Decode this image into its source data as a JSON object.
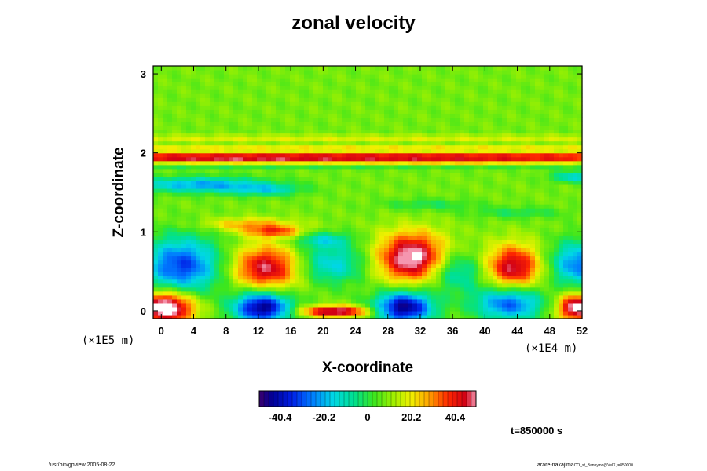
{
  "chart_data": {
    "type": "heatmap",
    "title": "zonal velocity",
    "xlabel": "X-coordinate",
    "ylabel": "Z-coordinate",
    "x_unit_label": "(×1E4 m)",
    "y_unit_label": "(×1E5 m)",
    "xlim": [
      -1,
      52
    ],
    "ylim": [
      -0.1,
      3.1
    ],
    "x_ticks": [
      "0",
      "4",
      "8",
      "12",
      "16",
      "20",
      "24",
      "28",
      "32",
      "36",
      "40",
      "44",
      "48",
      "52"
    ],
    "y_ticks": [
      "0",
      "1",
      "2",
      "3"
    ],
    "x_tick_values": [
      0,
      4,
      8,
      12,
      16,
      20,
      24,
      28,
      32,
      36,
      40,
      44,
      48,
      52
    ],
    "y_tick_values": [
      0,
      1,
      2,
      3
    ],
    "colorbar": {
      "range": [
        -50,
        50
      ],
      "tick_labels": [
        "-40.4",
        "-20.2",
        "0",
        "20.2",
        "40.4"
      ],
      "tick_values": [
        -40.4,
        -20.2,
        0,
        20.2,
        40.4
      ]
    },
    "background_value": 8,
    "features": [
      {
        "x": 20.5,
        "z": 1.95,
        "sx": 60,
        "sz": 0.04,
        "v": 40
      },
      {
        "x": 8,
        "z": 1.9,
        "sx": 9,
        "sz": 0.03,
        "v": 8
      },
      {
        "x": 36,
        "z": 1.88,
        "sx": 12,
        "sz": 0.03,
        "v": 10
      },
      {
        "x": 20,
        "z": 1.83,
        "sx": 60,
        "sz": 0.025,
        "v": -8
      },
      {
        "x": 25,
        "z": 2.07,
        "sx": 60,
        "sz": 0.03,
        "v": 12
      },
      {
        "x": 20,
        "z": 2.19,
        "sx": 60,
        "sz": 0.025,
        "v": 12
      },
      {
        "x": 5,
        "z": 1.6,
        "sx": 6,
        "sz": 0.07,
        "v": -30
      },
      {
        "x": 13,
        "z": 1.53,
        "sx": 3,
        "sz": 0.05,
        "v": -18
      },
      {
        "x": 51,
        "z": 1.7,
        "sx": 2,
        "sz": 0.05,
        "v": -22
      },
      {
        "x": 33,
        "z": 1.35,
        "sx": 4,
        "sz": 0.05,
        "v": -10
      },
      {
        "x": 44,
        "z": 1.25,
        "sx": 4,
        "sz": 0.05,
        "v": -10
      },
      {
        "x": 11,
        "z": 1.1,
        "sx": 4,
        "sz": 0.06,
        "v": 20
      },
      {
        "x": 14,
        "z": 1.0,
        "sx": 2.5,
        "sz": 0.05,
        "v": 25
      },
      {
        "x": 20,
        "z": 0.9,
        "sx": 2.5,
        "sz": 0.07,
        "v": -18
      },
      {
        "x": 2.5,
        "z": 0.58,
        "sx": 3.5,
        "sz": 0.25,
        "v": -40
      },
      {
        "x": 13,
        "z": 0.55,
        "sx": 3,
        "sz": 0.2,
        "v": 40
      },
      {
        "x": 21,
        "z": 0.6,
        "sx": 3,
        "sz": 0.18,
        "v": -24
      },
      {
        "x": 31,
        "z": 0.68,
        "sx": 3,
        "sz": 0.22,
        "v": 48
      },
      {
        "x": 36.5,
        "z": 0.5,
        "sx": 2.5,
        "sz": 0.18,
        "v": -22
      },
      {
        "x": 43.5,
        "z": 0.56,
        "sx": 2.5,
        "sz": 0.2,
        "v": 40
      },
      {
        "x": 51.5,
        "z": 0.6,
        "sx": 2.5,
        "sz": 0.2,
        "v": -34
      },
      {
        "x": 0.5,
        "z": 0.05,
        "sx": 2.5,
        "sz": 0.14,
        "v": 55
      },
      {
        "x": 12.5,
        "z": 0.05,
        "sx": 2.5,
        "sz": 0.14,
        "v": -55
      },
      {
        "x": 21.5,
        "z": 0.0,
        "sx": 3,
        "sz": 0.05,
        "v": 45
      },
      {
        "x": 30,
        "z": 0.05,
        "sx": 2.5,
        "sz": 0.14,
        "v": -55
      },
      {
        "x": 43,
        "z": 0.1,
        "sx": 3,
        "sz": 0.15,
        "v": -38
      },
      {
        "x": 51.5,
        "z": 0.05,
        "sx": 1.8,
        "sz": 0.12,
        "v": 50
      }
    ]
  },
  "time_label": "t=850000 s",
  "footer_left": "/usr/bin/gpview 2005-08-22",
  "footer_right_main": "arare-nakajima",
  "footer_right_small": "CO_st_Banny.nc@VelX,t=850000"
}
